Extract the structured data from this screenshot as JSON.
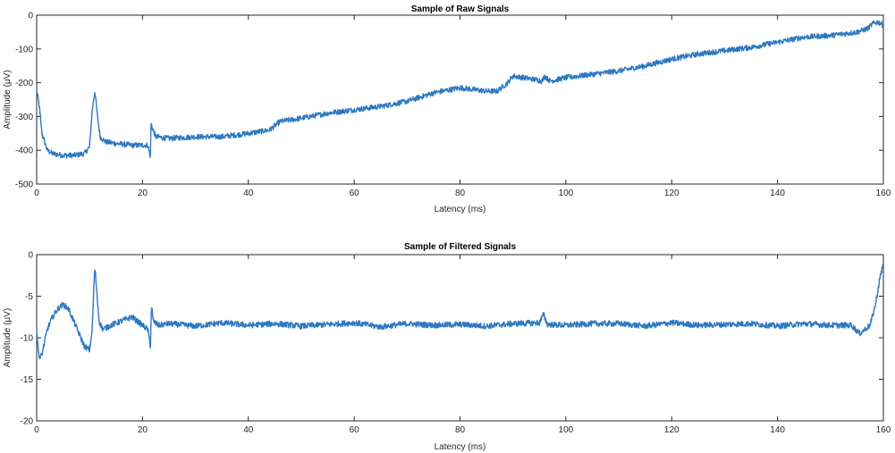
{
  "chart_data": [
    {
      "type": "line",
      "title": "Sample of Raw Signals",
      "xlabel": "Latency (ms)",
      "ylabel": "Amplitude (μV)",
      "xlim": [
        0,
        160
      ],
      "ylim": [
        -500,
        0
      ],
      "xticks": [
        0,
        20,
        40,
        60,
        80,
        100,
        120,
        140,
        160
      ],
      "yticks": [
        -500,
        -400,
        -300,
        -200,
        -100,
        0
      ],
      "grid": false,
      "series": [
        {
          "color": "#2e78c0",
          "noise": 8,
          "x": [
            0,
            0.5,
            1,
            2,
            3,
            5,
            7,
            9,
            10,
            10.5,
            11,
            11.5,
            12,
            13,
            15,
            18,
            20,
            21,
            21.5,
            21.6,
            22,
            22.5,
            25,
            30,
            35,
            40,
            44,
            46,
            50,
            55,
            60,
            65,
            70,
            75,
            80,
            85,
            87,
            89,
            90,
            92,
            94,
            95.5,
            96,
            97,
            100,
            105,
            110,
            115,
            120,
            125,
            130,
            135,
            140,
            145,
            150,
            155,
            157,
            158,
            159,
            160
          ],
          "y": [
            -220,
            -270,
            -350,
            -400,
            -410,
            -415,
            -415,
            -410,
            -390,
            -280,
            -225,
            -300,
            -360,
            -375,
            -380,
            -385,
            -385,
            -385,
            -420,
            -320,
            -340,
            -360,
            -365,
            -360,
            -360,
            -350,
            -340,
            -315,
            -305,
            -290,
            -280,
            -270,
            -255,
            -230,
            -215,
            -225,
            -225,
            -200,
            -180,
            -185,
            -190,
            -195,
            -180,
            -195,
            -185,
            -175,
            -165,
            -150,
            -130,
            -115,
            -105,
            -95,
            -80,
            -65,
            -60,
            -50,
            -40,
            -25,
            -20,
            -30
          ]
        }
      ]
    },
    {
      "type": "line",
      "title": "Sample of Filtered Signals",
      "xlabel": "Latency (ms)",
      "ylabel": "Amplitude (μV)",
      "xlim": [
        0,
        160
      ],
      "ylim": [
        -20,
        0
      ],
      "xticks": [
        0,
        20,
        40,
        60,
        80,
        100,
        120,
        140,
        160
      ],
      "yticks": [
        -20,
        -15,
        -10,
        -5,
        0
      ],
      "grid": false,
      "series": [
        {
          "color": "#2e78c0",
          "noise": 0.35,
          "x": [
            0,
            0.3,
            0.6,
            1,
            1.5,
            2,
            3,
            4,
            5,
            6,
            7,
            8,
            9,
            10,
            10.5,
            10.8,
            11,
            11.3,
            11.8,
            12.5,
            14,
            16,
            18,
            20,
            21,
            21.5,
            21.7,
            22,
            23,
            25,
            30,
            35,
            40,
            45,
            50,
            55,
            60,
            65,
            70,
            75,
            80,
            85,
            90,
            95,
            95.8,
            96.5,
            100,
            105,
            110,
            115,
            120,
            125,
            130,
            135,
            140,
            145,
            150,
            154,
            155.5,
            156.5,
            157.5,
            158.5,
            159.3,
            160
          ],
          "y": [
            -9,
            -11.5,
            -12.5,
            -12,
            -10.5,
            -9,
            -7.5,
            -6.5,
            -6,
            -6.5,
            -8,
            -9.5,
            -11,
            -11.5,
            -9,
            -4,
            -1.5,
            -4,
            -8,
            -9,
            -8.5,
            -8,
            -7.5,
            -8.5,
            -9,
            -11,
            -6,
            -8,
            -8.5,
            -8.3,
            -8.6,
            -8.2,
            -8.5,
            -8.3,
            -8.6,
            -8.4,
            -8.2,
            -8.7,
            -8.3,
            -8.5,
            -8.4,
            -8.6,
            -8.3,
            -8.2,
            -7.2,
            -8.4,
            -8.5,
            -8.3,
            -8.3,
            -8.6,
            -8.2,
            -8.5,
            -8.4,
            -8.3,
            -8.6,
            -8.3,
            -8.5,
            -8.5,
            -9.5,
            -9,
            -8.5,
            -6,
            -3,
            -1
          ]
        }
      ]
    }
  ]
}
